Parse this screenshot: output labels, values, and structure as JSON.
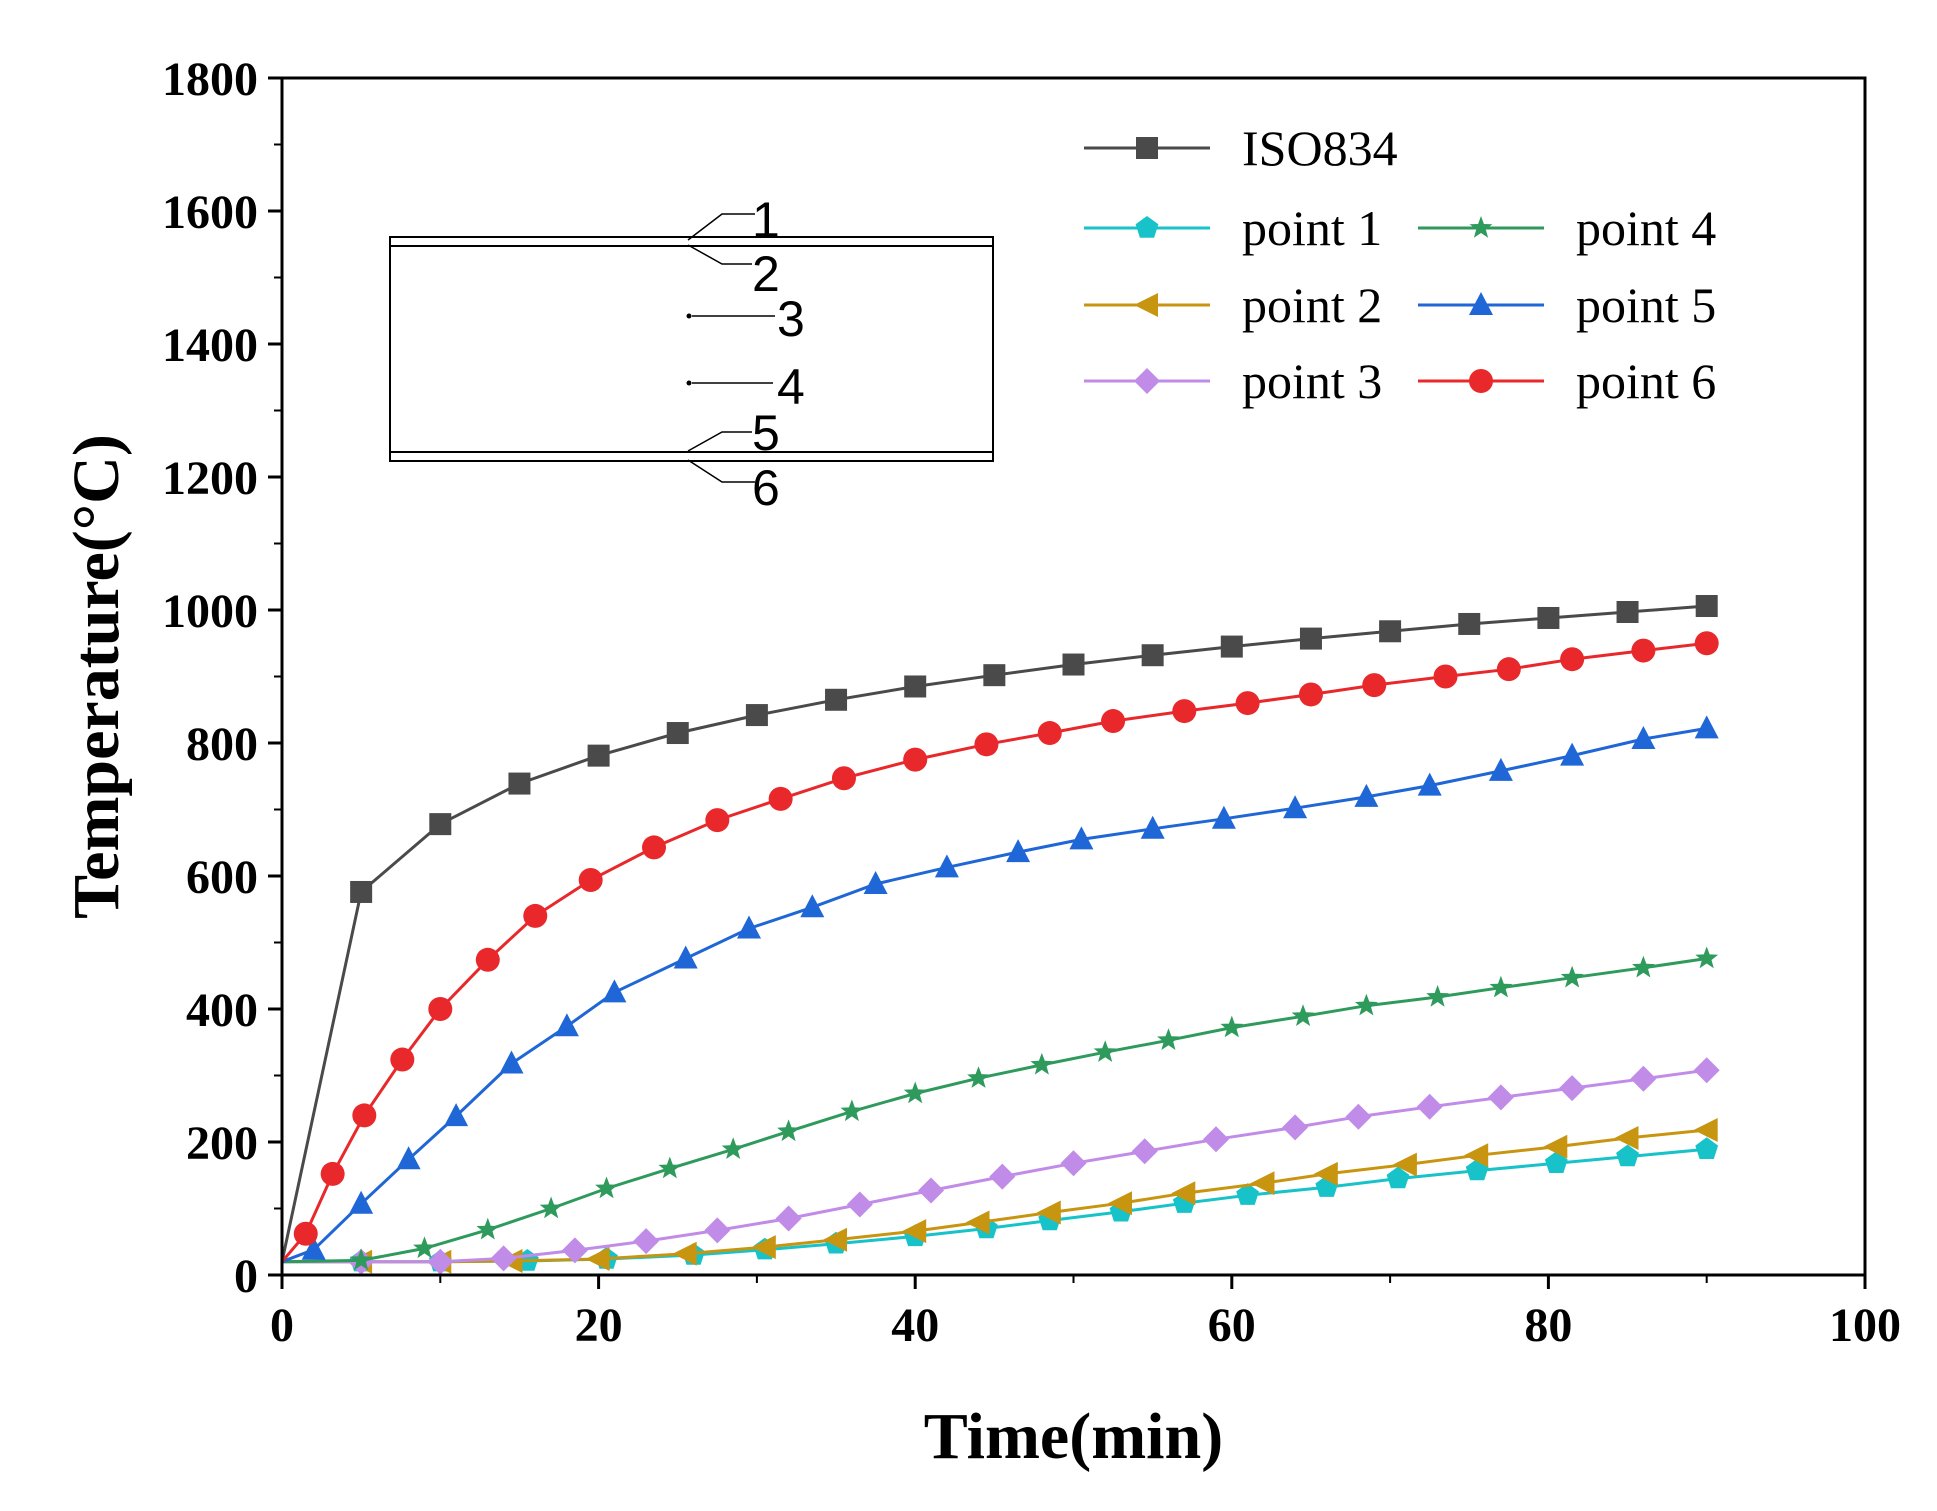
{
  "chart_data": {
    "type": "line",
    "title": "",
    "xlabel": "Time(min)",
    "ylabel": "Temperature(°C)",
    "xlim": [
      0,
      100
    ],
    "ylim": [
      0,
      1800
    ],
    "xticks": [
      "0",
      "20",
      "40",
      "60",
      "80",
      "100"
    ],
    "yticks": [
      "0",
      "200",
      "400",
      "600",
      "800",
      "1000",
      "1200",
      "1400",
      "1600",
      "1800"
    ],
    "grid": false,
    "legend_position": "top-right",
    "series": [
      {
        "name": "ISO834",
        "color": "#4a4a4a",
        "marker": "square",
        "x": [
          0,
          5,
          10,
          15,
          20,
          25,
          30,
          35,
          40,
          45,
          50,
          55,
          60,
          65,
          70,
          75,
          80,
          85,
          90
        ],
        "y": [
          20,
          576,
          678,
          739,
          781,
          815,
          842,
          865,
          885,
          902,
          918,
          932,
          945,
          957,
          968,
          979,
          988,
          997,
          1006
        ]
      },
      {
        "name": "point 1",
        "color": "#17c3c8",
        "marker": "pentagon",
        "x": [
          0,
          5,
          10,
          15.5,
          20.5,
          26,
          30.5,
          35,
          40,
          44.5,
          48.5,
          53,
          57,
          61,
          66,
          70.5,
          75.5,
          80.5,
          85,
          90
        ],
        "y": [
          20,
          20,
          20,
          21,
          24,
          30,
          38,
          47,
          58,
          70,
          82,
          95,
          108,
          120,
          132,
          145,
          157,
          168,
          178,
          189
        ]
      },
      {
        "name": "point 2",
        "color": "#c89511",
        "marker": "triangle-left",
        "x": [
          0,
          5,
          10,
          14.5,
          20,
          25.5,
          30.5,
          35,
          40,
          44,
          48.5,
          53,
          57,
          62,
          66,
          71,
          75.5,
          80.5,
          85,
          90
        ],
        "y": [
          20,
          20,
          20,
          21,
          24,
          32,
          42,
          53,
          66,
          79,
          94,
          108,
          123,
          138,
          152,
          166,
          180,
          193,
          206,
          218
        ]
      },
      {
        "name": "point 3",
        "color": "#c18be8",
        "marker": "diamond",
        "x": [
          0,
          5,
          10,
          14,
          18.5,
          23,
          27.5,
          32,
          36.5,
          41,
          45.5,
          50,
          54.5,
          59,
          64,
          68,
          72.5,
          77,
          81.5,
          86,
          90
        ],
        "y": [
          20,
          20,
          20,
          25,
          37,
          51,
          67,
          85,
          106,
          127,
          148,
          168,
          186,
          204,
          222,
          238,
          253,
          267,
          281,
          295,
          308
        ]
      },
      {
        "name": "point 4",
        "color": "#2e9a5b",
        "marker": "star",
        "x": [
          0,
          5,
          9,
          13,
          17,
          20.5,
          24.5,
          28.5,
          32,
          36,
          40,
          44,
          48,
          52,
          56,
          60,
          64.5,
          68.5,
          73,
          77,
          81.5,
          86,
          90
        ],
        "y": [
          20,
          22,
          40,
          68,
          100,
          130,
          160,
          189,
          216,
          246,
          273,
          296,
          316,
          335,
          353,
          372,
          389,
          405,
          418,
          432,
          447,
          462,
          476
        ]
      },
      {
        "name": "point 5",
        "color": "#1f66d6",
        "marker": "triangle-up",
        "x": [
          0,
          2,
          5,
          8,
          11,
          14.5,
          18,
          21,
          25.5,
          29.5,
          33.5,
          37.5,
          42,
          46.5,
          50.5,
          55,
          59.5,
          64,
          68.5,
          72.5,
          77,
          81.5,
          86,
          90
        ],
        "y": [
          20,
          38,
          107,
          174,
          239,
          318,
          374,
          425,
          476,
          521,
          553,
          588,
          613,
          636,
          655,
          671,
          686,
          702,
          719,
          736,
          758,
          781,
          806,
          822
        ]
      },
      {
        "name": "point 6",
        "color": "#e8282a",
        "marker": "circle",
        "x": [
          0,
          1.5,
          3.2,
          5.2,
          7.6,
          10,
          13,
          16,
          19.5,
          23.5,
          27.5,
          31.5,
          35.5,
          40,
          44.5,
          48.5,
          52.5,
          57,
          61,
          65,
          69,
          73.5,
          77.5,
          81.5,
          86,
          90
        ],
        "y": [
          20,
          62,
          152,
          240,
          324,
          400,
          474,
          540,
          594,
          643,
          684,
          716,
          747,
          775,
          798,
          815,
          833,
          848,
          860,
          873,
          887,
          900,
          911,
          926,
          939,
          950
        ]
      }
    ],
    "inset": {
      "labels": [
        "1",
        "2",
        "3",
        "4",
        "5",
        "6"
      ]
    }
  }
}
